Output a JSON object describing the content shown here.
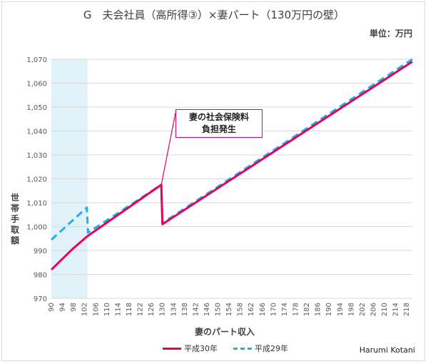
{
  "title": "G　夫会社員（高所得③）×妻パート（130万円の壁）",
  "unit": "単位：万円",
  "credit": "Harumi Kotani",
  "annotation": [
    "妻の社会保険料",
    "負担発生"
  ],
  "chart_data": {
    "type": "line",
    "xlabel": "妻のパート収入",
    "ylabel": "世帯手取額",
    "ylim": [
      970,
      1070
    ],
    "yticks": [
      970,
      980,
      990,
      1000,
      1010,
      1020,
      1030,
      1040,
      1050,
      1060,
      1070
    ],
    "ytick_labels": [
      "970",
      "980",
      "990",
      "1,000",
      "1,010",
      "1,020",
      "1,030",
      "1,040",
      "1,050",
      "1,060",
      "1,070"
    ],
    "xlim": [
      90,
      220
    ],
    "xticks": [
      90,
      94,
      98,
      102,
      106,
      110,
      114,
      118,
      122,
      126,
      130,
      134,
      138,
      142,
      146,
      150,
      154,
      158,
      162,
      166,
      170,
      174,
      178,
      182,
      186,
      190,
      194,
      198,
      202,
      206,
      210,
      214,
      218
    ],
    "shaded_region": [
      90,
      103
    ],
    "grid": true,
    "legend_position": "bottom",
    "series": [
      {
        "name": "平成30年",
        "color": "#e8005a",
        "style": "solid",
        "x": [
          90,
          98,
          103,
          129.6,
          130,
          220
        ],
        "y": [
          982,
          991,
          996,
          1017.5,
          1001,
          1069
        ]
      },
      {
        "name": "平成29年",
        "color": "#1ab3e6",
        "style": "dashed",
        "x": [
          90,
          102.8,
          103.2,
          129.6,
          130,
          220
        ],
        "y": [
          994.5,
          1008,
          997.5,
          1017.5,
          1001.5,
          1070
        ]
      }
    ]
  }
}
